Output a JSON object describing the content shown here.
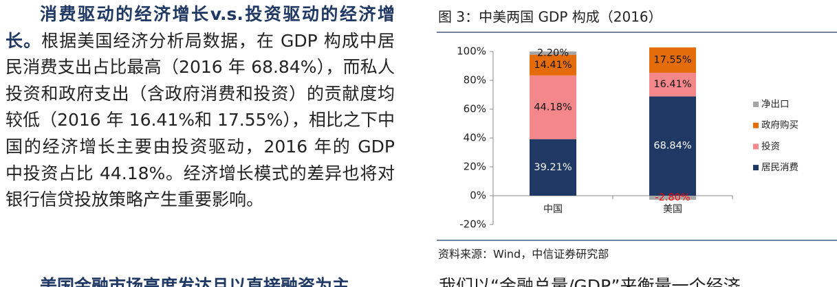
{
  "text_column": {
    "heading": "消费驱动的经济增长v.s.投资驱动的经济增长。",
    "body": "根据美国经济分析局数据，在 GDP 构成中居民消费支出占比最高（2016 年 68.84%），而私人投资和政府支出（含政府消费和投资）的贡献度均较低（2016 年 16.41%和 17.55%），相比之下中国的经济增长主要由投资驱动，2016 年的 GDP 中投资占比 44.18%。经济增长模式的差异也将对银行信贷投放策略产生重要影响。"
  },
  "chart_data": {
    "type": "bar",
    "stacked": true,
    "title": "图 3：中美两国 GDP 构成（2016）",
    "categories": [
      "中国",
      "美国"
    ],
    "series": [
      {
        "name": "居民消费",
        "color": "#1f3864",
        "values": [
          39.21,
          68.84
        ],
        "value_labels": [
          "39.21%",
          "68.84%"
        ]
      },
      {
        "name": "投资",
        "color": "#f4878a",
        "values": [
          44.18,
          16.41
        ],
        "value_labels": [
          "44.18%",
          "16.41%"
        ]
      },
      {
        "name": "政府购买",
        "color": "#e46c0a",
        "values": [
          14.41,
          17.55
        ],
        "value_labels": [
          "14.41%",
          "17.55%"
        ]
      },
      {
        "name": "净出口",
        "color": "#a6a6a6",
        "values": [
          2.2,
          -2.8
        ],
        "value_labels": [
          "2.20%",
          "-2.80%"
        ]
      }
    ],
    "ylim": [
      -20,
      100
    ],
    "yticks": [
      {
        "value": -20,
        "label": "-20%"
      },
      {
        "value": 0,
        "label": "0%"
      },
      {
        "value": 20,
        "label": "20%"
      },
      {
        "value": 40,
        "label": "40%"
      },
      {
        "value": 60,
        "label": "60%"
      },
      {
        "value": 80,
        "label": "80%"
      },
      {
        "value": 100,
        "label": "100%"
      }
    ],
    "legend": "right"
  },
  "source": "资料来源：Wind，中信证券研究部",
  "next_paragraph": {
    "heading": "美国金融市场高度发达且以直接融资为主，",
    "body": "我们以“金融总量/GDP”来衡量一个经济"
  }
}
